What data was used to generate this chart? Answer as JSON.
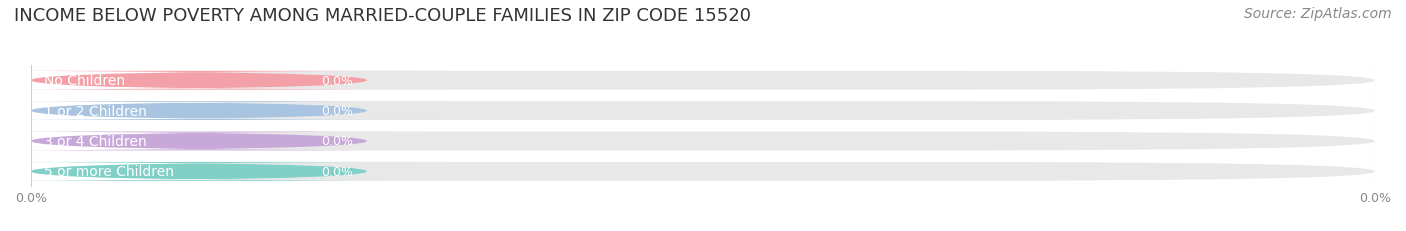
{
  "title": "INCOME BELOW POVERTY AMONG MARRIED-COUPLE FAMILIES IN ZIP CODE 15520",
  "source": "Source: ZipAtlas.com",
  "categories": [
    "No Children",
    "1 or 2 Children",
    "3 or 4 Children",
    "5 or more Children"
  ],
  "values": [
    0.0,
    0.0,
    0.0,
    0.0
  ],
  "bar_colors": [
    "#f4a0a8",
    "#a8c4e0",
    "#c8a8d8",
    "#80d0c8"
  ],
  "label_colors": [
    "#f4a0a8",
    "#a8c4e0",
    "#c8a8d8",
    "#80d0c8"
  ],
  "bar_bg_color": "#eeeeee",
  "bg_color": "#ffffff",
  "title_fontsize": 13,
  "source_fontsize": 10,
  "label_fontsize": 10,
  "value_fontsize": 9,
  "tick_fontsize": 9,
  "xlim": [
    0,
    0.001
  ],
  "xticks": [
    0.0
  ],
  "xtick_labels": [
    "0.0%"
  ]
}
